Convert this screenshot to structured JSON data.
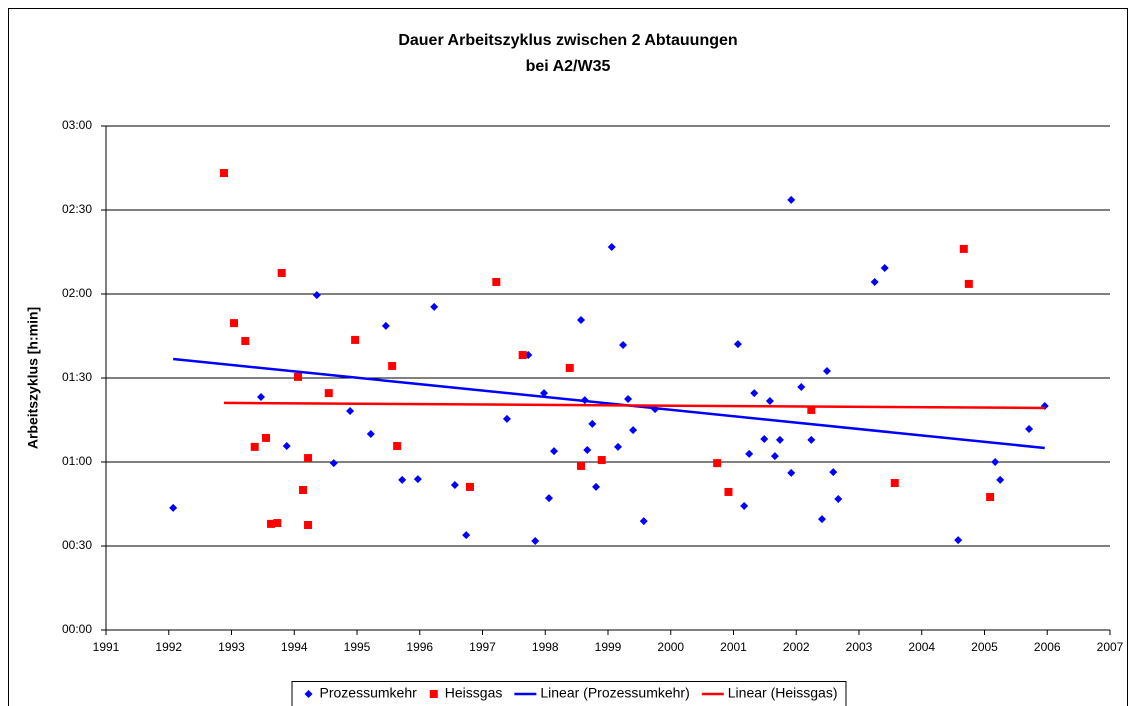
{
  "chart_data": {
    "type": "scatter",
    "title": [
      "Dauer Arbeitszyklus zwischen 2 Abtauungen",
      "bei A2/W35"
    ],
    "y_label": "Arbeitszyklus [h:min]",
    "xlim": [
      1991,
      2007
    ],
    "xticks": [
      1991,
      1992,
      1993,
      1994,
      1995,
      1996,
      1997,
      1998,
      1999,
      2000,
      2001,
      2002,
      2003,
      2004,
      2005,
      2006,
      2007
    ],
    "ylim": [
      0,
      180
    ],
    "yticks": [
      {
        "value": 0,
        "label": "00:00"
      },
      {
        "value": 30,
        "label": "00:30"
      },
      {
        "value": 60,
        "label": "01:00"
      },
      {
        "value": 90,
        "label": "01:30"
      },
      {
        "value": 120,
        "label": "02:00"
      },
      {
        "value": 150,
        "label": "02:30"
      },
      {
        "value": 180,
        "label": "03:00"
      }
    ],
    "grid": true,
    "legend": "bottom",
    "series": [
      {
        "name": "Prozessumkehr",
        "color": "#0000ff",
        "marker": "diamond",
        "x": [
          1992.07,
          1993.47,
          1994.36,
          1993.88,
          1994.63,
          1994.89,
          1995.22,
          1995.46,
          1995.72,
          1995.97,
          1996.23,
          1996.56,
          1996.74,
          1997.39,
          1997.73,
          1997.84,
          1997.98,
          1998.06,
          1998.14,
          1998.57,
          1998.63,
          1998.67,
          1998.75,
          1998.81,
          1999.06,
          1999.16,
          1999.24,
          1999.32,
          1999.4,
          1999.57,
          1999.75,
          2001.07,
          2001.17,
          2001.25,
          2001.33,
          2001.49,
          2001.58,
          2001.66,
          2001.74,
          2001.92,
          2001.92,
          2002.08,
          2002.24,
          2002.41,
          2002.49,
          2002.59,
          2002.67,
          2003.25,
          2003.41,
          2004.58,
          2005.17,
          2005.25,
          2005.71,
          2005.96
        ],
        "values": [
          43.6,
          83.2,
          119.6,
          65.7,
          59.6,
          78.2,
          70,
          108.6,
          53.6,
          53.9,
          115.4,
          51.8,
          33.9,
          75.4,
          98.2,
          31.8,
          84.6,
          47.1,
          63.9,
          110.7,
          82.1,
          64.3,
          73.6,
          51.1,
          136.8,
          65.4,
          101.8,
          82.5,
          71.4,
          38.9,
          78.9,
          102.1,
          44.3,
          62.9,
          84.6,
          68.2,
          81.8,
          62.1,
          67.9,
          153.6,
          56.1,
          86.8,
          67.9,
          39.6,
          92.5,
          56.4,
          46.8,
          124.3,
          129.3,
          32.1,
          60,
          53.6,
          71.8,
          80
        ]
      },
      {
        "name": "Heissgas",
        "color": "#ff0000",
        "marker": "square",
        "x": [
          1992.88,
          1993.04,
          1993.22,
          1993.37,
          1993.55,
          1993.63,
          1993.73,
          1993.8,
          1994.06,
          1994.14,
          1994.22,
          1994.22,
          1994.55,
          1994.97,
          1995.56,
          1995.64,
          1996.8,
          1997.22,
          1997.64,
          1998.39,
          1998.57,
          1998.9,
          2000.74,
          2000.92,
          2002.24,
          2003.57,
          2004.67,
          2004.75,
          2005.09
        ],
        "values": [
          163.2,
          109.6,
          103.2,
          65.4,
          68.6,
          37.9,
          38.2,
          127.5,
          90.4,
          50,
          61.4,
          37.5,
          84.6,
          103.6,
          94.3,
          65.7,
          51.1,
          124.3,
          98.2,
          93.6,
          58.6,
          60.7,
          59.6,
          49.3,
          78.6,
          52.5,
          136.1,
          123.6,
          47.5
        ]
      },
      {
        "name": "Linear (Prozessumkehr)",
        "color": "#0000ff",
        "marker": "line",
        "x": [
          1992.07,
          2005.96
        ],
        "values": [
          96.8,
          65
        ]
      },
      {
        "name": "Linear (Heissgas)",
        "color": "#ff0000",
        "marker": "line",
        "x": [
          1992.88,
          2005.96
        ],
        "values": [
          81.1,
          79.3
        ]
      }
    ]
  }
}
